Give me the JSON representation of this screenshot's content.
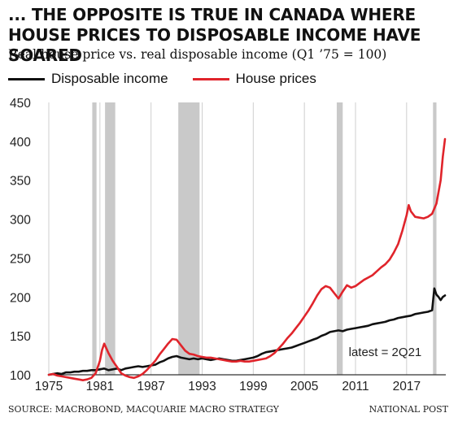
{
  "header": {
    "title": "... THE OPPOSITE IS TRUE IN CANADA WHERE HOUSE PRICES TO DISPOSABLE INCOME HAVE SOARED",
    "subtitle": "Real house price vs. real disposable income (Q1 ’75 = 100)"
  },
  "footer": {
    "source": "SOURCE: MACROBOND, MACQUARIE MACRO STRATEGY",
    "credit": "NATIONAL POST"
  },
  "colors": {
    "income": "#111111",
    "house": "#e0242b",
    "recession": "#c9c9c9",
    "grid": "#cfcfcf"
  },
  "chart_data": {
    "type": "line",
    "title": "... THE OPPOSITE IS TRUE IN CANADA WHERE HOUSE PRICES TO DISPOSABLE INCOME HAVE SOARED",
    "subtitle": "Real house price vs. real disposable income (Q1 ’75 = 100)",
    "xlim": [
      1975,
      2021.6
    ],
    "ylim": [
      100,
      450
    ],
    "grid": "vertical",
    "legend": "top-left",
    "x_ticks": [
      {
        "value": 1975,
        "label": "1975"
      },
      {
        "value": 1981,
        "label": "1981"
      },
      {
        "value": 1987,
        "label": "1987"
      },
      {
        "value": 1993,
        "label": "1993"
      },
      {
        "value": 1999,
        "label": "1999"
      },
      {
        "value": 2005,
        "label": "2005"
      },
      {
        "value": 2011,
        "label": "2011"
      },
      {
        "value": 2017,
        "label": "2017"
      }
    ],
    "y_ticks": [
      {
        "value": 100,
        "label": "100"
      },
      {
        "value": 150,
        "label": "150"
      },
      {
        "value": 200,
        "label": "200"
      },
      {
        "value": 250,
        "label": "250"
      },
      {
        "value": 300,
        "label": "300"
      },
      {
        "value": 350,
        "label": "350"
      },
      {
        "value": 400,
        "label": "400"
      },
      {
        "value": 450,
        "label": "450"
      }
    ],
    "shaded_periods": [
      [
        1980.1,
        1980.6
      ],
      [
        1981.6,
        1982.8
      ],
      [
        1990.2,
        1992.7
      ],
      [
        2008.8,
        2009.5
      ],
      [
        2020.1,
        2020.5
      ]
    ],
    "annotation": "latest = 2Q21",
    "series": [
      {
        "name": "Disposable income",
        "color": "#111111",
        "points": [
          [
            1975.0,
            100
          ],
          [
            1975.5,
            101
          ],
          [
            1976.0,
            102
          ],
          [
            1976.5,
            101
          ],
          [
            1977.0,
            103
          ],
          [
            1977.5,
            103
          ],
          [
            1978.0,
            104
          ],
          [
            1978.5,
            104
          ],
          [
            1979.0,
            105
          ],
          [
            1979.5,
            105
          ],
          [
            1980.0,
            106
          ],
          [
            1980.5,
            106
          ],
          [
            1981.0,
            107
          ],
          [
            1981.5,
            108
          ],
          [
            1982.0,
            106
          ],
          [
            1982.5,
            107
          ],
          [
            1983.0,
            108
          ],
          [
            1983.5,
            106
          ],
          [
            1984.0,
            108
          ],
          [
            1984.5,
            109
          ],
          [
            1985.0,
            110
          ],
          [
            1985.5,
            111
          ],
          [
            1986.0,
            110
          ],
          [
            1986.5,
            111
          ],
          [
            1987.0,
            112
          ],
          [
            1987.5,
            113
          ],
          [
            1988.0,
            116
          ],
          [
            1988.5,
            118
          ],
          [
            1989.0,
            121
          ],
          [
            1989.5,
            123
          ],
          [
            1990.0,
            124
          ],
          [
            1990.5,
            122
          ],
          [
            1991.0,
            121
          ],
          [
            1991.5,
            120
          ],
          [
            1992.0,
            121
          ],
          [
            1992.5,
            120
          ],
          [
            1993.0,
            121
          ],
          [
            1993.5,
            120
          ],
          [
            1994.0,
            119
          ],
          [
            1994.5,
            120
          ],
          [
            1995.0,
            121
          ],
          [
            1995.5,
            120
          ],
          [
            1996.0,
            119
          ],
          [
            1996.5,
            118
          ],
          [
            1997.0,
            118
          ],
          [
            1997.5,
            119
          ],
          [
            1998.0,
            120
          ],
          [
            1998.5,
            121
          ],
          [
            1999.0,
            122
          ],
          [
            1999.5,
            124
          ],
          [
            2000.0,
            127
          ],
          [
            2000.5,
            129
          ],
          [
            2001.0,
            130
          ],
          [
            2001.5,
            131
          ],
          [
            2002.0,
            132
          ],
          [
            2002.5,
            133
          ],
          [
            2003.0,
            134
          ],
          [
            2003.5,
            135
          ],
          [
            2004.0,
            137
          ],
          [
            2004.5,
            139
          ],
          [
            2005.0,
            141
          ],
          [
            2005.5,
            143
          ],
          [
            2006.0,
            145
          ],
          [
            2006.5,
            147
          ],
          [
            2007.0,
            150
          ],
          [
            2007.5,
            152
          ],
          [
            2008.0,
            155
          ],
          [
            2008.5,
            156
          ],
          [
            2009.0,
            157
          ],
          [
            2009.5,
            156
          ],
          [
            2010.0,
            158
          ],
          [
            2010.5,
            159
          ],
          [
            2011.0,
            160
          ],
          [
            2011.5,
            161
          ],
          [
            2012.0,
            162
          ],
          [
            2012.5,
            163
          ],
          [
            2013.0,
            165
          ],
          [
            2013.5,
            166
          ],
          [
            2014.0,
            167
          ],
          [
            2014.5,
            168
          ],
          [
            2015.0,
            170
          ],
          [
            2015.5,
            171
          ],
          [
            2016.0,
            173
          ],
          [
            2016.5,
            174
          ],
          [
            2017.0,
            175
          ],
          [
            2017.5,
            176
          ],
          [
            2018.0,
            178
          ],
          [
            2018.5,
            179
          ],
          [
            2019.0,
            180
          ],
          [
            2019.5,
            181
          ],
          [
            2020.0,
            183
          ],
          [
            2020.25,
            211
          ],
          [
            2020.5,
            203
          ],
          [
            2020.75,
            200
          ],
          [
            2021.0,
            196
          ],
          [
            2021.25,
            200
          ],
          [
            2021.5,
            202
          ]
        ]
      },
      {
        "name": "House prices",
        "color": "#e0242b",
        "points": [
          [
            1975.0,
            100
          ],
          [
            1975.5,
            101
          ],
          [
            1976.0,
            99
          ],
          [
            1976.5,
            98
          ],
          [
            1977.0,
            97
          ],
          [
            1977.5,
            96
          ],
          [
            1978.0,
            95
          ],
          [
            1978.5,
            94
          ],
          [
            1979.0,
            93
          ],
          [
            1979.5,
            94
          ],
          [
            1980.0,
            96
          ],
          [
            1980.5,
            102
          ],
          [
            1981.0,
            118
          ],
          [
            1981.25,
            132
          ],
          [
            1981.5,
            140
          ],
          [
            1982.0,
            128
          ],
          [
            1982.5,
            118
          ],
          [
            1983.0,
            110
          ],
          [
            1983.5,
            102
          ],
          [
            1984.0,
            99
          ],
          [
            1984.5,
            97
          ],
          [
            1985.0,
            96
          ],
          [
            1985.5,
            98
          ],
          [
            1986.0,
            101
          ],
          [
            1986.5,
            106
          ],
          [
            1987.0,
            112
          ],
          [
            1987.5,
            118
          ],
          [
            1988.0,
            126
          ],
          [
            1988.5,
            133
          ],
          [
            1989.0,
            140
          ],
          [
            1989.5,
            146
          ],
          [
            1990.0,
            145
          ],
          [
            1990.5,
            138
          ],
          [
            1991.0,
            131
          ],
          [
            1991.5,
            127
          ],
          [
            1992.0,
            126
          ],
          [
            1992.5,
            124
          ],
          [
            1993.0,
            123
          ],
          [
            1993.5,
            122
          ],
          [
            1994.0,
            122
          ],
          [
            1994.5,
            121
          ],
          [
            1995.0,
            120
          ],
          [
            1995.5,
            119
          ],
          [
            1996.0,
            118
          ],
          [
            1996.5,
            117
          ],
          [
            1997.0,
            117
          ],
          [
            1997.5,
            118
          ],
          [
            1998.0,
            117
          ],
          [
            1998.5,
            117
          ],
          [
            1999.0,
            118
          ],
          [
            1999.5,
            119
          ],
          [
            2000.0,
            120
          ],
          [
            2000.5,
            121
          ],
          [
            2001.0,
            124
          ],
          [
            2001.5,
            128
          ],
          [
            2002.0,
            134
          ],
          [
            2002.5,
            140
          ],
          [
            2003.0,
            147
          ],
          [
            2003.5,
            153
          ],
          [
            2004.0,
            160
          ],
          [
            2004.5,
            167
          ],
          [
            2005.0,
            175
          ],
          [
            2005.5,
            183
          ],
          [
            2006.0,
            192
          ],
          [
            2006.5,
            202
          ],
          [
            2007.0,
            210
          ],
          [
            2007.5,
            214
          ],
          [
            2008.0,
            212
          ],
          [
            2008.5,
            205
          ],
          [
            2009.0,
            198
          ],
          [
            2009.5,
            207
          ],
          [
            2010.0,
            215
          ],
          [
            2010.5,
            212
          ],
          [
            2011.0,
            214
          ],
          [
            2011.5,
            218
          ],
          [
            2012.0,
            222
          ],
          [
            2012.5,
            225
          ],
          [
            2013.0,
            228
          ],
          [
            2013.5,
            233
          ],
          [
            2014.0,
            238
          ],
          [
            2014.5,
            242
          ],
          [
            2015.0,
            248
          ],
          [
            2015.5,
            257
          ],
          [
            2016.0,
            268
          ],
          [
            2016.5,
            285
          ],
          [
            2017.0,
            305
          ],
          [
            2017.25,
            318
          ],
          [
            2017.5,
            310
          ],
          [
            2018.0,
            303
          ],
          [
            2018.5,
            302
          ],
          [
            2019.0,
            301
          ],
          [
            2019.5,
            303
          ],
          [
            2020.0,
            307
          ],
          [
            2020.5,
            320
          ],
          [
            2021.0,
            350
          ],
          [
            2021.25,
            380
          ],
          [
            2021.5,
            403
          ]
        ]
      }
    ]
  }
}
